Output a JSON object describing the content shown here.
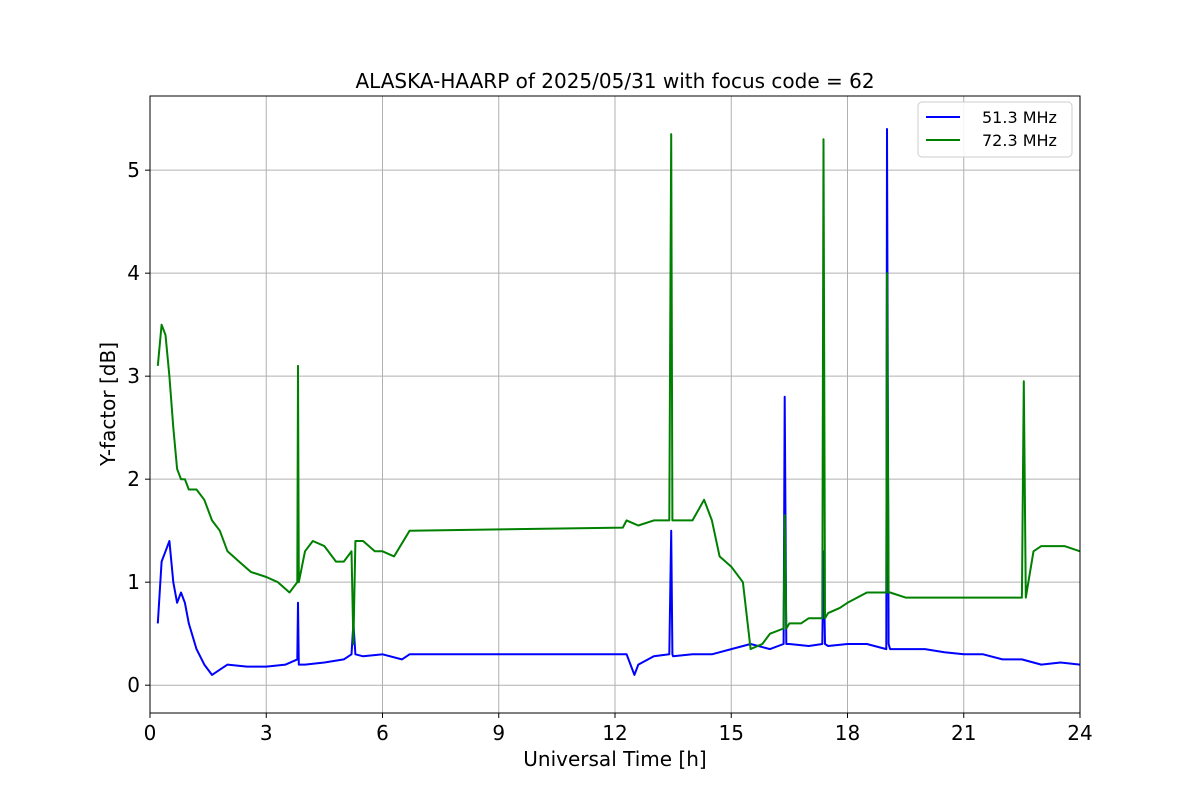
{
  "chart_data": {
    "type": "line",
    "title": "ALASKA-HAARP of 2025/05/31 with focus code = 62",
    "xlabel": "Universal Time [h]",
    "ylabel": "Y-factor [dB]",
    "xlim": [
      0,
      24
    ],
    "ylim": [
      -0.27,
      5.72
    ],
    "xticks": [
      0,
      3,
      6,
      9,
      12,
      15,
      18,
      21,
      24
    ],
    "yticks": [
      0,
      1,
      2,
      3,
      4,
      5
    ],
    "xtick_labels": [
      "0",
      "3",
      "6",
      "9",
      "12",
      "15",
      "18",
      "21",
      "24"
    ],
    "ytick_labels": [
      "0",
      "1",
      "2",
      "3",
      "4",
      "5"
    ],
    "grid": true,
    "legend": "top-right",
    "series": [
      {
        "name": "51.3 MHz",
        "color": "#0000ff",
        "x": [
          0.2,
          0.3,
          0.4,
          0.5,
          0.6,
          0.7,
          0.8,
          0.9,
          1.0,
          1.2,
          1.4,
          1.6,
          1.8,
          2.0,
          2.5,
          3.0,
          3.5,
          3.8,
          3.82,
          3.84,
          4.0,
          4.5,
          5.0,
          5.2,
          5.25,
          5.3,
          5.5,
          6.0,
          6.5,
          6.7,
          12.2,
          12.3,
          12.5,
          12.6,
          13.0,
          13.4,
          13.45,
          13.48,
          13.5,
          14.0,
          14.5,
          15.0,
          15.5,
          16.0,
          16.35,
          16.38,
          16.42,
          16.5,
          17.0,
          17.35,
          17.38,
          17.42,
          17.5,
          18.0,
          18.5,
          19.0,
          19.02,
          19.06,
          19.1,
          19.5,
          20.0,
          20.5,
          21.0,
          21.5,
          22.0,
          22.5,
          23.0,
          23.5,
          24.0
        ],
        "y": [
          0.6,
          1.2,
          1.3,
          1.4,
          1.0,
          0.8,
          0.9,
          0.8,
          0.6,
          0.35,
          0.2,
          0.1,
          0.15,
          0.2,
          0.18,
          0.18,
          0.2,
          0.25,
          0.8,
          0.2,
          0.2,
          0.22,
          0.25,
          0.3,
          0.6,
          0.3,
          0.28,
          0.3,
          0.25,
          0.3,
          0.3,
          0.3,
          0.1,
          0.2,
          0.28,
          0.3,
          1.5,
          0.3,
          0.28,
          0.3,
          0.3,
          0.35,
          0.4,
          0.35,
          0.4,
          2.8,
          0.4,
          0.4,
          0.38,
          0.4,
          1.3,
          0.4,
          0.38,
          0.4,
          0.4,
          0.35,
          5.4,
          0.4,
          0.35,
          0.35,
          0.35,
          0.32,
          0.3,
          0.3,
          0.25,
          0.25,
          0.2,
          0.22,
          0.2
        ]
      },
      {
        "name": "72.3 MHz",
        "color": "#008000",
        "x": [
          0.2,
          0.3,
          0.4,
          0.5,
          0.6,
          0.7,
          0.8,
          0.9,
          1.0,
          1.2,
          1.4,
          1.6,
          1.8,
          2.0,
          2.3,
          2.6,
          3.0,
          3.3,
          3.6,
          3.8,
          3.82,
          3.84,
          4.0,
          4.2,
          4.5,
          4.8,
          5.0,
          5.2,
          5.25,
          5.3,
          5.5,
          5.8,
          6.0,
          6.3,
          6.7,
          12.2,
          12.3,
          12.6,
          13.0,
          13.4,
          13.45,
          13.48,
          13.5,
          13.8,
          14.0,
          14.3,
          14.5,
          14.7,
          15.0,
          15.3,
          15.5,
          15.8,
          16.0,
          16.35,
          16.38,
          16.42,
          16.5,
          16.8,
          17.0,
          17.35,
          17.38,
          17.42,
          17.5,
          17.8,
          18.0,
          18.5,
          19.0,
          19.02,
          19.06,
          19.1,
          19.5,
          20.0,
          20.5,
          21.0,
          21.5,
          22.0,
          22.5,
          22.55,
          22.6,
          22.8,
          23.0,
          23.3,
          23.6,
          24.0
        ],
        "y": [
          3.1,
          3.5,
          3.4,
          3.0,
          2.5,
          2.1,
          2.0,
          2.0,
          1.9,
          1.9,
          1.8,
          1.6,
          1.5,
          1.3,
          1.2,
          1.1,
          1.05,
          1.0,
          0.9,
          1.0,
          3.1,
          1.0,
          1.3,
          1.4,
          1.35,
          1.2,
          1.2,
          1.3,
          0.4,
          1.4,
          1.4,
          1.3,
          1.3,
          1.25,
          1.5,
          1.53,
          1.6,
          1.55,
          1.6,
          1.6,
          5.35,
          1.6,
          1.6,
          1.6,
          1.6,
          1.8,
          1.6,
          1.25,
          1.15,
          1.0,
          0.35,
          0.4,
          0.5,
          0.55,
          1.65,
          0.55,
          0.6,
          0.6,
          0.65,
          0.65,
          5.3,
          0.65,
          0.7,
          0.75,
          0.8,
          0.9,
          0.9,
          4.0,
          0.9,
          0.9,
          0.85,
          0.85,
          0.85,
          0.85,
          0.85,
          0.85,
          0.85,
          2.95,
          0.85,
          1.3,
          1.35,
          1.35,
          1.35,
          1.3
        ]
      }
    ]
  }
}
